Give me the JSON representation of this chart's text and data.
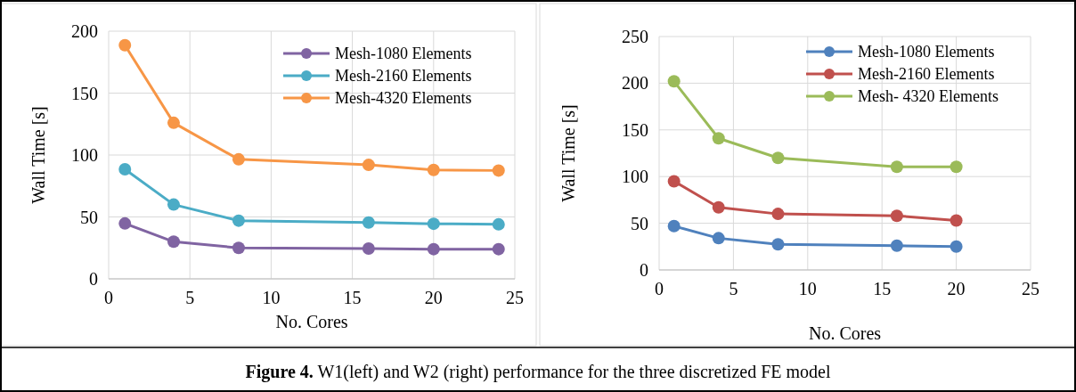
{
  "chart_data": [
    {
      "type": "line",
      "xlabel": "No. Cores",
      "ylabel": "Wall Time [s]",
      "x": [
        1,
        4,
        8,
        16,
        20,
        24
      ],
      "xlim": [
        0,
        25
      ],
      "xticks": [
        0,
        5,
        10,
        15,
        20,
        25
      ],
      "ylim": [
        0,
        200
      ],
      "yticks": [
        0,
        50,
        100,
        150,
        200
      ],
      "grid": true,
      "legend": "top right",
      "marker": "circle",
      "line_style": "solid",
      "series": [
        {
          "name": "Mesh-1080 Elements",
          "color": "#8064a2",
          "values": [
            44.7,
            30,
            25,
            24.5,
            24,
            24
          ]
        },
        {
          "name": "Mesh-2160 Elements",
          "color": "#4bacc6",
          "values": [
            88.5,
            60,
            47,
            45.5,
            44.5,
            44
          ]
        },
        {
          "name": "Mesh-4320 Elements",
          "color": "#f79646",
          "values": [
            188.7,
            126,
            96.5,
            92,
            88,
            87.5
          ]
        }
      ],
      "annotations": [
        "Figure 4. W1(left) and W2 (right) performance for the three discretized FE model"
      ]
    },
    {
      "type": "line",
      "xlabel": "No. Cores",
      "ylabel": "Wall Time [s]",
      "x": [
        1,
        4,
        8,
        16,
        20
      ],
      "xlim": [
        0,
        25
      ],
      "xticks": [
        0,
        5,
        10,
        15,
        20,
        25
      ],
      "ylim": [
        0,
        250
      ],
      "yticks": [
        0,
        50,
        100,
        150,
        200,
        250
      ],
      "grid": true,
      "legend": "top right",
      "marker": "circle",
      "line_style": "solid",
      "series": [
        {
          "name": "Mesh-1080 Elements",
          "color": "#4f81bd",
          "values": [
            47,
            34,
            27.5,
            26,
            25
          ]
        },
        {
          "name": "Mesh-2160 Elements",
          "color": "#c0504d",
          "values": [
            95,
            67,
            60,
            58,
            53
          ]
        },
        {
          "name": "Mesh- 4320 Elements",
          "color": "#9bbb59",
          "values": [
            202,
            141,
            120,
            110.5,
            110.5
          ]
        }
      ]
    }
  ]
}
